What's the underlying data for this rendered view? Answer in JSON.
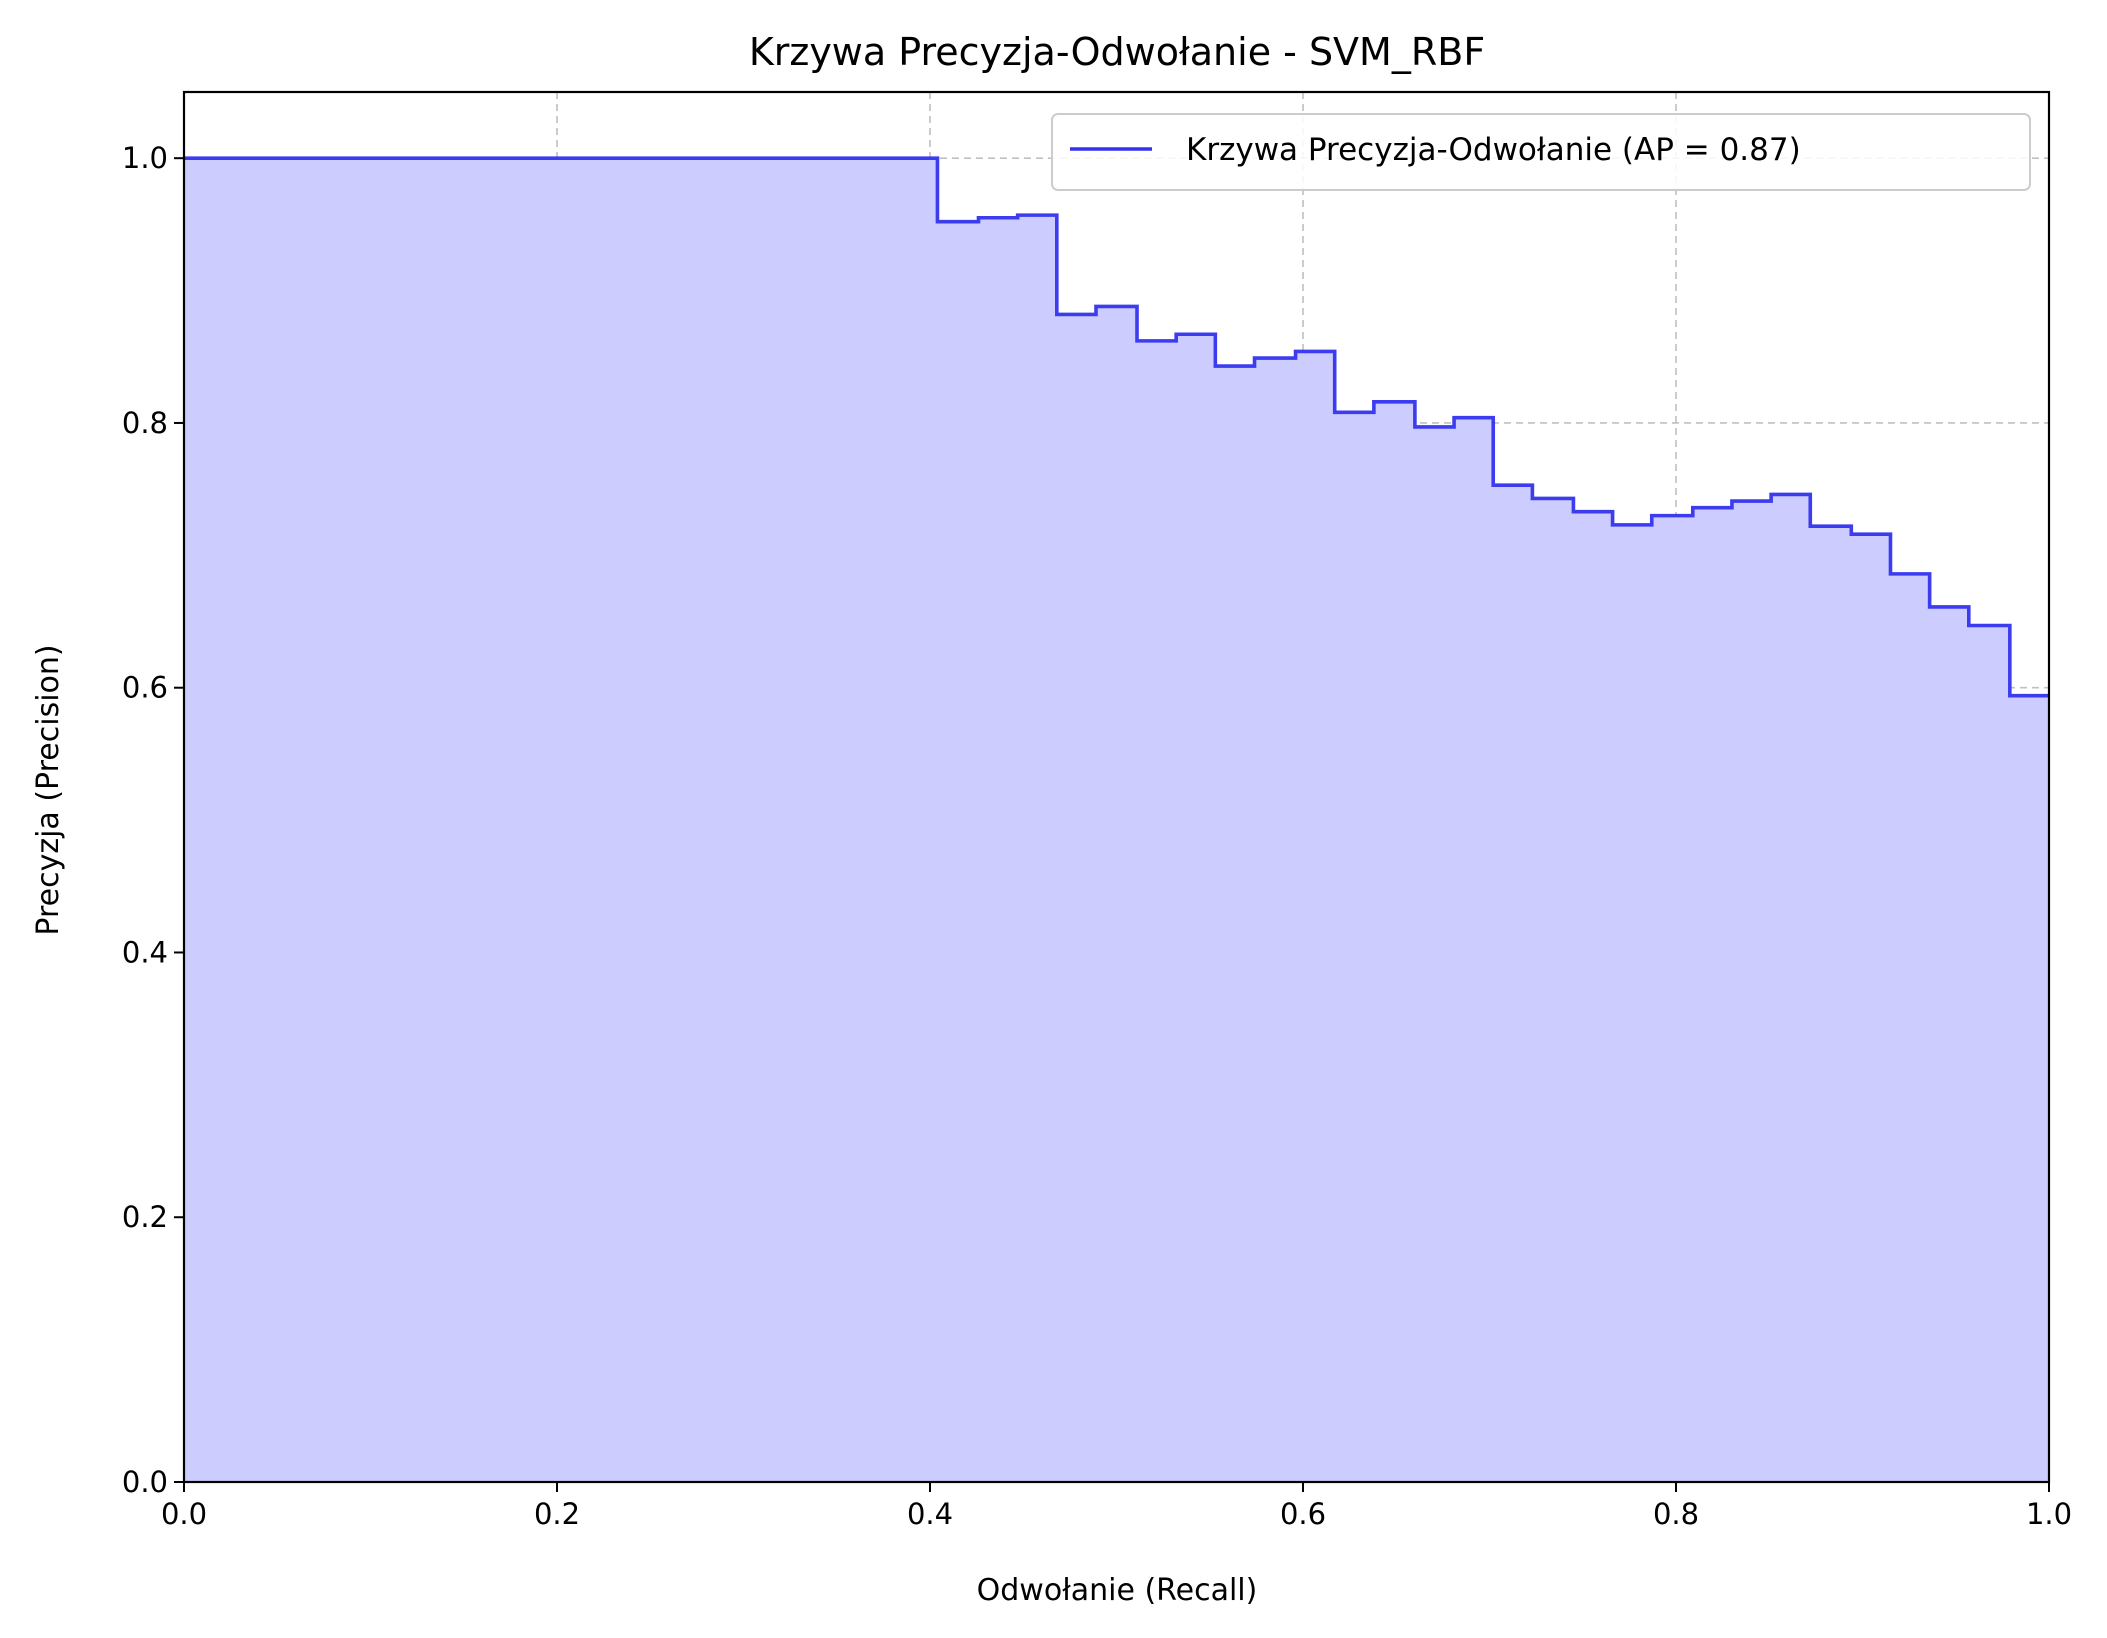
{
  "chart_data": {
    "type": "line",
    "title": "Krzywa Precyzja-Odwołanie - SVM_RBF",
    "xlabel": "Odwołanie (Recall)",
    "ylabel": "Precyzja (Precision)",
    "xlim": [
      0.0,
      1.0
    ],
    "ylim": [
      0.0,
      1.05
    ],
    "x_ticks": [
      "0.0",
      "0.2",
      "0.4",
      "0.6",
      "0.8",
      "1.0"
    ],
    "y_ticks": [
      "0.0",
      "0.2",
      "0.4",
      "0.6",
      "0.8",
      "1.0"
    ],
    "grid": true,
    "legend_position": "top-right",
    "step": "post",
    "filled_area": true,
    "series": [
      {
        "name": "Krzywa Precyzja-Odwołanie (AP = 0.87)",
        "color": "#3333ee",
        "fill_color": "#ccccff",
        "points": [
          [
            0.0,
            1.0
          ],
          [
            0.404,
            0.952
          ],
          [
            0.426,
            0.955
          ],
          [
            0.447,
            0.957
          ],
          [
            0.468,
            0.882
          ],
          [
            0.489,
            0.888
          ],
          [
            0.511,
            0.862
          ],
          [
            0.532,
            0.867
          ],
          [
            0.553,
            0.843
          ],
          [
            0.574,
            0.849
          ],
          [
            0.596,
            0.854
          ],
          [
            0.617,
            0.808
          ],
          [
            0.638,
            0.816
          ],
          [
            0.66,
            0.797
          ],
          [
            0.681,
            0.804
          ],
          [
            0.702,
            0.753
          ],
          [
            0.723,
            0.743
          ],
          [
            0.745,
            0.733
          ],
          [
            0.766,
            0.723
          ],
          [
            0.787,
            0.73
          ],
          [
            0.809,
            0.736
          ],
          [
            0.83,
            0.741
          ],
          [
            0.851,
            0.746
          ],
          [
            0.872,
            0.722
          ],
          [
            0.894,
            0.716
          ],
          [
            0.915,
            0.686
          ],
          [
            0.936,
            0.661
          ],
          [
            0.957,
            0.647
          ],
          [
            0.979,
            0.594
          ],
          [
            1.0,
            0.594
          ]
        ]
      }
    ]
  }
}
